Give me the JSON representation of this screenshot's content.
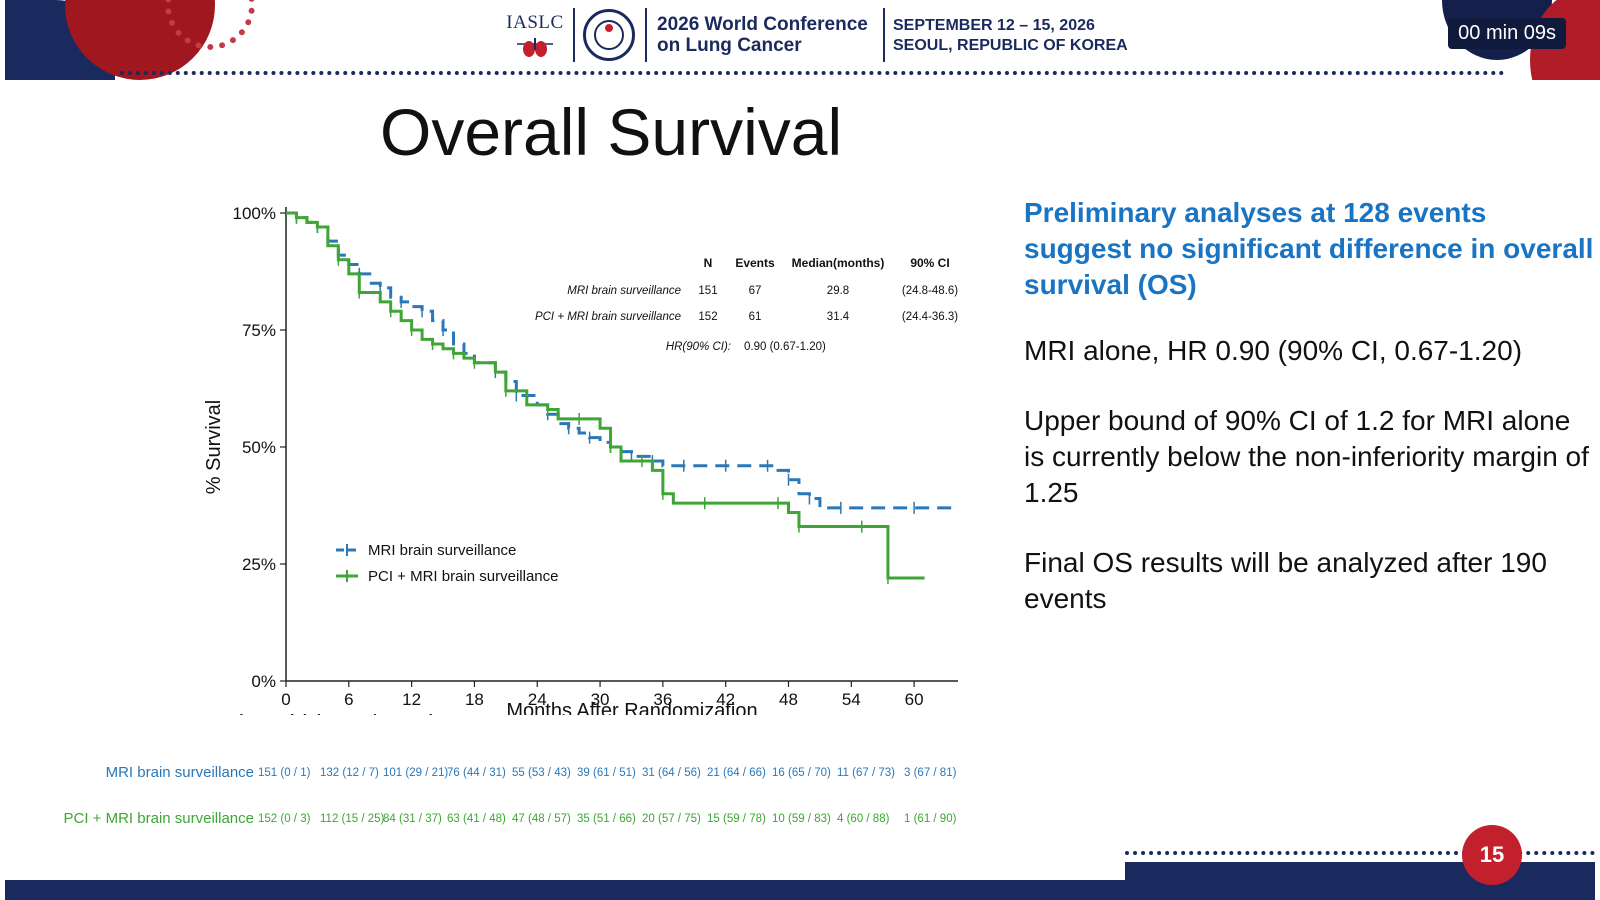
{
  "header": {
    "org": "IASLC",
    "conference_line1": "2026 World Conference",
    "conference_line2": "on Lung Cancer",
    "dates": "SEPTEMBER 12 – 15, 2026",
    "location": "SEOUL, REPUBLIC OF KOREA",
    "timer": "00 min 09s",
    "colors": {
      "navy": "#1b2a5e",
      "red": "#c3202e"
    }
  },
  "slide": {
    "title": "Overall Survival",
    "page_number": "15"
  },
  "right_panel": {
    "highlight": "Preliminary analyses at 128 events suggest no significant difference in overall survival (OS)",
    "highlight_color": "#1a74c4",
    "points": [
      "MRI alone, HR 0.90 (90% CI, 0.67-1.20)",
      "Upper bound of 90% CI of 1.2 for MRI alone is currently below the non-inferiority margin of 1.25",
      "Final OS results will be analyzed after 190 events"
    ]
  },
  "chart_data": {
    "type": "line",
    "title": "",
    "xlabel": "Months After Randomization",
    "ylabel": "% Survival",
    "xlim": [
      0,
      64
    ],
    "ylim": [
      0,
      100
    ],
    "x_ticks": [
      0,
      6,
      12,
      18,
      24,
      30,
      36,
      42,
      48,
      54,
      60
    ],
    "y_ticks": [
      0,
      25,
      50,
      75,
      100
    ],
    "y_tick_labels": [
      "0%",
      "25%",
      "50%",
      "75%",
      "100%"
    ],
    "grid": false,
    "legend_position": "bottom-left",
    "series": [
      {
        "name": "MRI brain surveillance",
        "color": "#2b78b8",
        "dashed": true,
        "points": [
          [
            0,
            100
          ],
          [
            1,
            99
          ],
          [
            2,
            98
          ],
          [
            3,
            97
          ],
          [
            4,
            94
          ],
          [
            5,
            91
          ],
          [
            6,
            89
          ],
          [
            7,
            87
          ],
          [
            8,
            85
          ],
          [
            9,
            84
          ],
          [
            10,
            82
          ],
          [
            11,
            81
          ],
          [
            12,
            80
          ],
          [
            13,
            79
          ],
          [
            14,
            77
          ],
          [
            15,
            75
          ],
          [
            16,
            72
          ],
          [
            17,
            70
          ],
          [
            18,
            68
          ],
          [
            20,
            66
          ],
          [
            21,
            64
          ],
          [
            22,
            61
          ],
          [
            24,
            59
          ],
          [
            25,
            57
          ],
          [
            26,
            55
          ],
          [
            27,
            54
          ],
          [
            28,
            53
          ],
          [
            29,
            52
          ],
          [
            30,
            51
          ],
          [
            31,
            50
          ],
          [
            32,
            49
          ],
          [
            33,
            48
          ],
          [
            34,
            48
          ],
          [
            35,
            47
          ],
          [
            36,
            46
          ],
          [
            38,
            46
          ],
          [
            40,
            46
          ],
          [
            42,
            46
          ],
          [
            44,
            46
          ],
          [
            46,
            46
          ],
          [
            47,
            45
          ],
          [
            48,
            43
          ],
          [
            49,
            40
          ],
          [
            50,
            39
          ],
          [
            51,
            37
          ],
          [
            53,
            37
          ],
          [
            56,
            37
          ],
          [
            60,
            37
          ],
          [
            64,
            37
          ]
        ]
      },
      {
        "name": "PCI + MRI brain surveillance",
        "color": "#3fa535",
        "dashed": false,
        "points": [
          [
            0,
            100
          ],
          [
            1,
            99
          ],
          [
            2,
            98
          ],
          [
            3,
            97
          ],
          [
            4,
            93
          ],
          [
            5,
            90
          ],
          [
            6,
            87
          ],
          [
            7,
            83
          ],
          [
            9,
            81
          ],
          [
            10,
            79
          ],
          [
            11,
            77
          ],
          [
            12,
            75
          ],
          [
            13,
            73
          ],
          [
            14,
            72
          ],
          [
            15,
            71
          ],
          [
            16,
            70
          ],
          [
            17,
            69
          ],
          [
            18,
            68
          ],
          [
            20,
            66
          ],
          [
            21,
            62
          ],
          [
            23,
            59
          ],
          [
            25,
            58
          ],
          [
            26,
            56
          ],
          [
            28,
            56
          ],
          [
            30,
            54
          ],
          [
            31,
            50
          ],
          [
            32,
            47
          ],
          [
            34,
            47
          ],
          [
            35,
            45
          ],
          [
            36,
            40
          ],
          [
            37,
            38
          ],
          [
            40,
            38
          ],
          [
            44,
            38
          ],
          [
            47,
            38
          ],
          [
            48,
            36
          ],
          [
            49,
            33
          ],
          [
            52,
            33
          ],
          [
            55,
            33
          ],
          [
            57,
            33
          ],
          [
            57.5,
            22
          ],
          [
            61,
            22
          ]
        ]
      }
    ],
    "inset_table": {
      "headers": [
        "N",
        "Events",
        "Median(months)",
        "90% CI"
      ],
      "rows": [
        {
          "label": "MRI brain surveillance",
          "values": [
            "151",
            "67",
            "29.8",
            "(24.8-48.6)"
          ]
        },
        {
          "label": "PCI + MRI brain surveillance",
          "values": [
            "152",
            "61",
            "31.4",
            "(24.4-36.3)"
          ]
        }
      ],
      "hr_label": "HR(90% CI):",
      "hr_value": "0.90 (0.67-1.20)"
    },
    "risk_table": {
      "title": "Number at risk (events / censor)",
      "rows": [
        {
          "label": "MRI brain surveillance",
          "color": "#2b78b8",
          "values": [
            "151 (0 / 1)",
            "132 (12 / 7)",
            "101 (29 / 21)",
            "76 (44 / 31)",
            "55 (53 / 43)",
            "39 (61 / 51)",
            "31 (64 / 56)",
            "21 (64 / 66)",
            "16 (65 / 70)",
            "11 (67 / 73)",
            "3 (67 / 81)"
          ]
        },
        {
          "label": "PCI + MRI brain surveillance",
          "color": "#3fa535",
          "values": [
            "152 (0 / 3)",
            "112 (15 / 25)",
            "84 (31 / 37)",
            "63 (41 / 48)",
            "47 (48 / 57)",
            "35 (51 / 66)",
            "20 (57 / 75)",
            "15 (59 / 78)",
            "10 (59 / 83)",
            "4 (60 / 88)",
            "1 (61 / 90)"
          ]
        }
      ]
    }
  }
}
